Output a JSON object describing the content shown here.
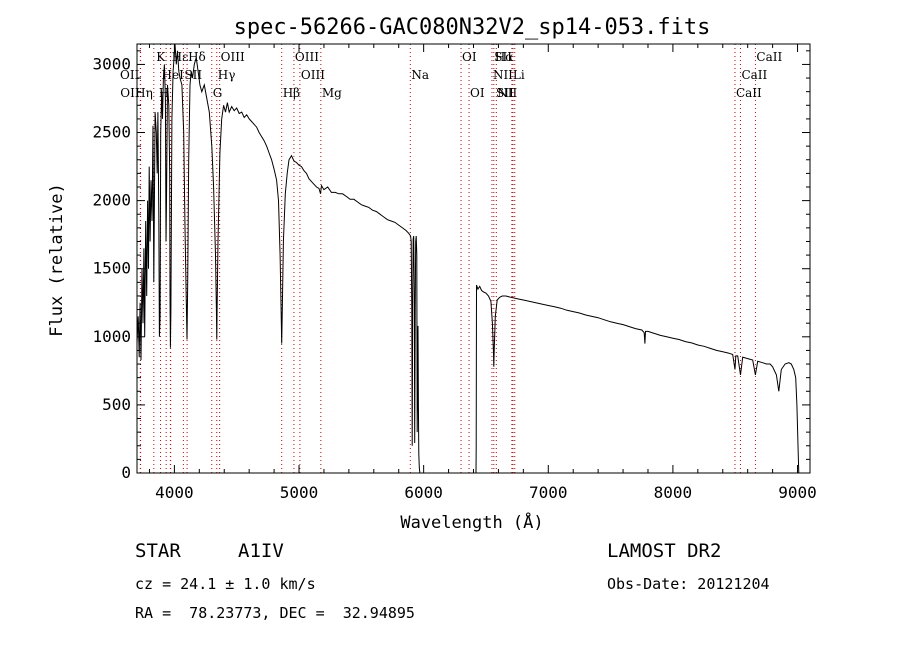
{
  "chart_data": {
    "type": "line",
    "title": "spec-56266-GAC080N32V2_sp14-053.fits",
    "xlabel": "Wavelength (Å)",
    "ylabel": "Flux (relative)",
    "xlim": [
      3700,
      9100
    ],
    "ylim": [
      0,
      3150
    ],
    "xticks": [
      4000,
      5000,
      6000,
      7000,
      8000,
      9000
    ],
    "yticks": [
      0,
      500,
      1000,
      1500,
      2000,
      2500,
      3000
    ],
    "grid": false,
    "line_color": "#000000",
    "marker_color": "#cc0000",
    "series": [
      {
        "points": [
          [
            3700,
            950
          ],
          [
            3710,
            1150
          ],
          [
            3718,
            850
          ],
          [
            3725,
            1250
          ],
          [
            3732,
            830
          ],
          [
            3740,
            1500
          ],
          [
            3748,
            1100
          ],
          [
            3755,
            1650
          ],
          [
            3762,
            1000
          ],
          [
            3770,
            1850
          ],
          [
            3778,
            1300
          ],
          [
            3785,
            2000
          ],
          [
            3792,
            1500
          ],
          [
            3798,
            2250
          ],
          [
            3805,
            1700
          ],
          [
            3812,
            2150
          ],
          [
            3820,
            1850
          ],
          [
            3828,
            2550
          ],
          [
            3835,
            1400
          ],
          [
            3845,
            2650
          ],
          [
            3855,
            2500
          ],
          [
            3862,
            2200
          ],
          [
            3868,
            2650
          ],
          [
            3875,
            1900
          ],
          [
            3880,
            1000
          ],
          [
            3885,
            1150
          ],
          [
            3890,
            2500
          ],
          [
            3898,
            2800
          ],
          [
            3905,
            2600
          ],
          [
            3912,
            2900
          ],
          [
            3920,
            3000
          ],
          [
            3928,
            2750
          ],
          [
            3933,
            1700
          ],
          [
            3937,
            2000
          ],
          [
            3945,
            2850
          ],
          [
            3955,
            2700
          ],
          [
            3962,
            2200
          ],
          [
            3965,
            1300
          ],
          [
            3968,
            920
          ],
          [
            3972,
            1200
          ],
          [
            3980,
            2600
          ],
          [
            3990,
            2950
          ],
          [
            3998,
            3050
          ],
          [
            4005,
            3150
          ],
          [
            4015,
            3000
          ],
          [
            4025,
            3100
          ],
          [
            4035,
            2950
          ],
          [
            4045,
            2900
          ],
          [
            4060,
            2850
          ],
          [
            4075,
            2500
          ],
          [
            4085,
            1800
          ],
          [
            4095,
            1300
          ],
          [
            4101,
            980
          ],
          [
            4107,
            1400
          ],
          [
            4115,
            2300
          ],
          [
            4125,
            2850
          ],
          [
            4135,
            2950
          ],
          [
            4145,
            2900
          ],
          [
            4160,
            3000
          ],
          [
            4175,
            3050
          ],
          [
            4190,
            2950
          ],
          [
            4205,
            2850
          ],
          [
            4220,
            2800
          ],
          [
            4240,
            2850
          ],
          [
            4260,
            2750
          ],
          [
            4280,
            2650
          ],
          [
            4300,
            2400
          ],
          [
            4315,
            2100
          ],
          [
            4330,
            1600
          ],
          [
            4337,
            1200
          ],
          [
            4340,
            980
          ],
          [
            4343,
            1200
          ],
          [
            4350,
            1700
          ],
          [
            4365,
            2350
          ],
          [
            4380,
            2600
          ],
          [
            4395,
            2700
          ],
          [
            4410,
            2650
          ],
          [
            4425,
            2720
          ],
          [
            4440,
            2650
          ],
          [
            4460,
            2690
          ],
          [
            4480,
            2660
          ],
          [
            4500,
            2680
          ],
          [
            4520,
            2640
          ],
          [
            4540,
            2650
          ],
          [
            4560,
            2610
          ],
          [
            4580,
            2630
          ],
          [
            4600,
            2600
          ],
          [
            4620,
            2580
          ],
          [
            4640,
            2560
          ],
          [
            4660,
            2540
          ],
          [
            4680,
            2500
          ],
          [
            4700,
            2470
          ],
          [
            4720,
            2440
          ],
          [
            4740,
            2400
          ],
          [
            4760,
            2350
          ],
          [
            4780,
            2300
          ],
          [
            4800,
            2230
          ],
          [
            4820,
            2150
          ],
          [
            4835,
            2000
          ],
          [
            4848,
            1600
          ],
          [
            4856,
            1200
          ],
          [
            4861,
            950
          ],
          [
            4866,
            1200
          ],
          [
            4875,
            1700
          ],
          [
            4890,
            2050
          ],
          [
            4905,
            2200
          ],
          [
            4920,
            2300
          ],
          [
            4940,
            2330
          ],
          [
            4960,
            2290
          ],
          [
            4980,
            2280
          ],
          [
            5000,
            2260
          ],
          [
            5020,
            2250
          ],
          [
            5040,
            2220
          ],
          [
            5060,
            2200
          ],
          [
            5080,
            2160
          ],
          [
            5100,
            2140
          ],
          [
            5120,
            2120
          ],
          [
            5140,
            2100
          ],
          [
            5160,
            2090
          ],
          [
            5172,
            2050
          ],
          [
            5180,
            2110
          ],
          [
            5200,
            2080
          ],
          [
            5230,
            2100
          ],
          [
            5260,
            2060
          ],
          [
            5290,
            2060
          ],
          [
            5320,
            2050
          ],
          [
            5350,
            2050
          ],
          [
            5380,
            2030
          ],
          [
            5410,
            2010
          ],
          [
            5440,
            2010
          ],
          [
            5470,
            1990
          ],
          [
            5500,
            1970
          ],
          [
            5530,
            1960
          ],
          [
            5560,
            1950
          ],
          [
            5590,
            1930
          ],
          [
            5620,
            1920
          ],
          [
            5650,
            1900
          ],
          [
            5680,
            1880
          ],
          [
            5710,
            1860
          ],
          [
            5740,
            1850
          ],
          [
            5770,
            1840
          ],
          [
            5800,
            1820
          ],
          [
            5830,
            1800
          ],
          [
            5860,
            1780
          ],
          [
            5880,
            1760
          ],
          [
            5895,
            1740
          ],
          [
            5900,
            1700
          ],
          [
            5905,
            1200
          ],
          [
            5908,
            200
          ],
          [
            5912,
            1300
          ],
          [
            5916,
            1720
          ],
          [
            5920,
            1740
          ],
          [
            5925,
            1300
          ],
          [
            5928,
            220
          ],
          [
            5932,
            1200
          ],
          [
            5936,
            1700
          ],
          [
            5940,
            1740
          ],
          [
            5945,
            1600
          ],
          [
            5948,
            300
          ],
          [
            5952,
            700
          ],
          [
            5955,
            1080
          ],
          [
            5958,
            500
          ],
          [
            5961,
            140
          ],
          [
            5965,
            40
          ],
          [
            5970,
            0
          ],
          [
            6000,
            0
          ],
          [
            6300,
            0
          ],
          [
            6420,
            0
          ],
          [
            6422,
            200
          ],
          [
            6424,
            1380
          ],
          [
            6435,
            1350
          ],
          [
            6450,
            1370
          ],
          [
            6465,
            1340
          ],
          [
            6480,
            1330
          ],
          [
            6500,
            1320
          ],
          [
            6520,
            1300
          ],
          [
            6540,
            1260
          ],
          [
            6552,
            1100
          ],
          [
            6560,
            900
          ],
          [
            6563,
            780
          ],
          [
            6566,
            900
          ],
          [
            6575,
            1150
          ],
          [
            6590,
            1270
          ],
          [
            6610,
            1290
          ],
          [
            6630,
            1300
          ],
          [
            6660,
            1300
          ],
          [
            6700,
            1290
          ],
          [
            6750,
            1280
          ],
          [
            6800,
            1270
          ],
          [
            6850,
            1260
          ],
          [
            6900,
            1250
          ],
          [
            6950,
            1240
          ],
          [
            7000,
            1230
          ],
          [
            7050,
            1220
          ],
          [
            7100,
            1210
          ],
          [
            7150,
            1195
          ],
          [
            7200,
            1185
          ],
          [
            7250,
            1175
          ],
          [
            7300,
            1160
          ],
          [
            7350,
            1150
          ],
          [
            7400,
            1140
          ],
          [
            7450,
            1125
          ],
          [
            7500,
            1110
          ],
          [
            7550,
            1100
          ],
          [
            7600,
            1090
          ],
          [
            7650,
            1075
          ],
          [
            7700,
            1060
          ],
          [
            7750,
            1050
          ],
          [
            7770,
            1030
          ],
          [
            7775,
            950
          ],
          [
            7780,
            1040
          ],
          [
            7800,
            1040
          ],
          [
            7850,
            1025
          ],
          [
            7900,
            1010
          ],
          [
            7950,
            1000
          ],
          [
            8000,
            990
          ],
          [
            8050,
            980
          ],
          [
            8100,
            965
          ],
          [
            8150,
            955
          ],
          [
            8200,
            940
          ],
          [
            8250,
            930
          ],
          [
            8300,
            915
          ],
          [
            8350,
            900
          ],
          [
            8400,
            890
          ],
          [
            8450,
            880
          ],
          [
            8480,
            870
          ],
          [
            8498,
            760
          ],
          [
            8505,
            860
          ],
          [
            8520,
            860
          ],
          [
            8542,
            720
          ],
          [
            8560,
            850
          ],
          [
            8600,
            840
          ],
          [
            8640,
            830
          ],
          [
            8662,
            720
          ],
          [
            8680,
            820
          ],
          [
            8720,
            810
          ],
          [
            8750,
            800
          ],
          [
            8780,
            800
          ],
          [
            8800,
            780
          ],
          [
            8830,
            720
          ],
          [
            8850,
            600
          ],
          [
            8870,
            760
          ],
          [
            8900,
            800
          ],
          [
            8930,
            810
          ],
          [
            8950,
            800
          ],
          [
            8970,
            760
          ],
          [
            8985,
            700
          ],
          [
            8995,
            500
          ],
          [
            9005,
            150
          ],
          [
            9010,
            0
          ]
        ]
      }
    ],
    "lines": [
      {
        "label": "Hε",
        "wl": 3970,
        "row": 1,
        "side": "r"
      },
      {
        "label": "K",
        "wl": 3934,
        "row": 1,
        "side": "l"
      },
      {
        "label": "Hδ",
        "wl": 4102,
        "row": 1,
        "side": "r"
      },
      {
        "label": "OIII",
        "wl": 4363,
        "row": 1,
        "side": "r"
      },
      {
        "label": "OIII",
        "wl": 4959,
        "row": 1,
        "side": "r"
      },
      {
        "label": "OI",
        "wl": 6300,
        "row": 1,
        "side": "r"
      },
      {
        "label": "Hα",
        "wl": 6563,
        "row": 1,
        "side": "r"
      },
      {
        "label": "SII",
        "wl": 6717,
        "row": 1,
        "side": "l"
      },
      {
        "label": "CaII",
        "wl": 8662,
        "row": 1,
        "side": "r"
      },
      {
        "label": "OII",
        "wl": 3727,
        "row": 2,
        "side": "l"
      },
      {
        "label": "HeI",
        "wl": 3889,
        "row": 2,
        "side": "r"
      },
      {
        "label": "SII",
        "wl": 4072,
        "row": 2,
        "side": "r"
      },
      {
        "label": "Hγ",
        "wl": 4340,
        "row": 2,
        "side": "r"
      },
      {
        "label": "OIII",
        "wl": 5007,
        "row": 2,
        "side": "r"
      },
      {
        "label": "Na",
        "wl": 5893,
        "row": 2,
        "side": "r"
      },
      {
        "label": "NII",
        "wl": 6548,
        "row": 2,
        "side": "r"
      },
      {
        "label": "Li",
        "wl": 6708,
        "row": 2,
        "side": "r"
      },
      {
        "label": "CaII",
        "wl": 8542,
        "row": 2,
        "side": "r"
      },
      {
        "label": "OII",
        "wl": 3729,
        "row": 3,
        "side": "l"
      },
      {
        "label": "Hη",
        "wl": 3835,
        "row": 3,
        "side": "l"
      },
      {
        "label": "H",
        "wl": 3968,
        "row": 3,
        "side": "l"
      },
      {
        "label": "G",
        "wl": 4300,
        "row": 3,
        "side": "r"
      },
      {
        "label": "Hβ",
        "wl": 4861,
        "row": 3,
        "side": "r"
      },
      {
        "label": "Mg",
        "wl": 5175,
        "row": 3,
        "side": "r"
      },
      {
        "label": "OI",
        "wl": 6364,
        "row": 3,
        "side": "r"
      },
      {
        "label": "NII",
        "wl": 6583,
        "row": 3,
        "side": "r"
      },
      {
        "label": "SII",
        "wl": 6731,
        "row": 3,
        "side": "l"
      },
      {
        "label": "CaII",
        "wl": 8498,
        "row": 3,
        "side": "r"
      }
    ]
  },
  "info": {
    "object_class": "STAR",
    "subclass": "A1IV",
    "survey": "LAMOST DR2",
    "redshift": "cz = 24.1 ± 1.0 km/s",
    "obs_date": "Obs-Date: 20121204",
    "coords": "RA =  78.23773, DEC =  32.94895"
  }
}
